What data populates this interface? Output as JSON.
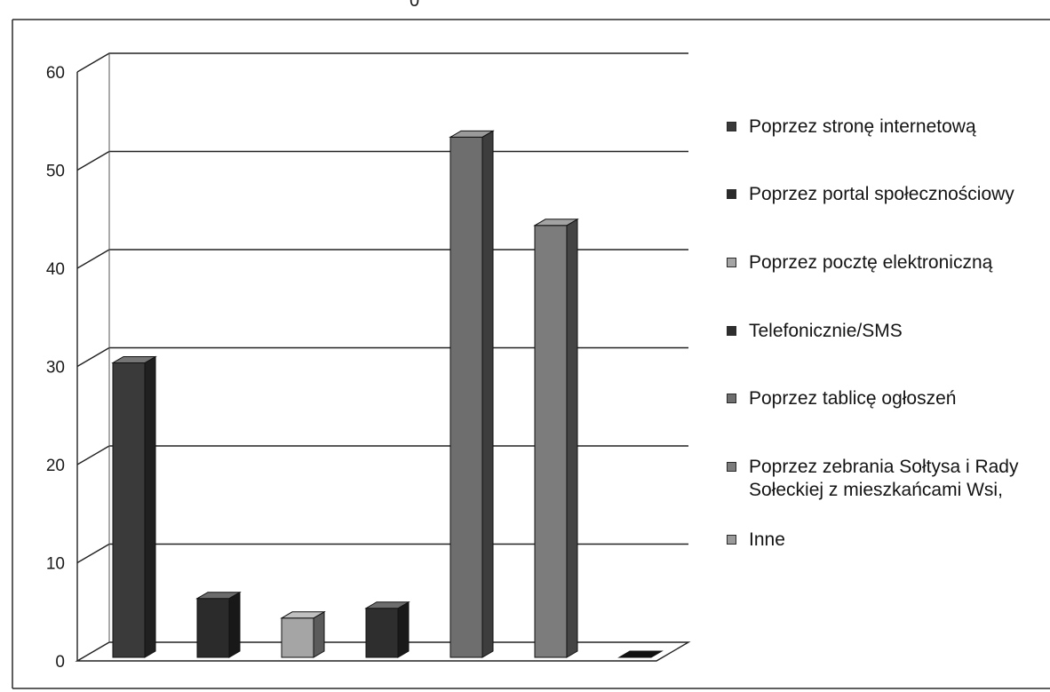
{
  "top_label": "0",
  "chart_data": {
    "type": "bar",
    "title": "",
    "xlabel": "",
    "ylabel": "",
    "ylim": [
      0,
      60
    ],
    "yticks": [
      0,
      10,
      20,
      30,
      40,
      50,
      60
    ],
    "grid": true,
    "legend_position": "right",
    "categories": [
      "Poprzez stronę internetową",
      "Poprzez portal społecznościowy",
      "Poprzez pocztę elektroniczną",
      "Telefonicznie/SMS",
      "Poprzez tablicę ogłoszeń",
      "Poprzez zebrania Sołtysa i Rady Sołeckiej z mieszkańcami Wsi,",
      "Inne"
    ],
    "values": [
      30,
      6,
      4,
      5,
      53,
      44,
      0
    ],
    "colors": [
      "#3a3a3a",
      "#2b2b2b",
      "#a5a5a5",
      "#2e2e2e",
      "#6e6e6e",
      "#7c7c7c",
      "#9a9a9a"
    ]
  }
}
